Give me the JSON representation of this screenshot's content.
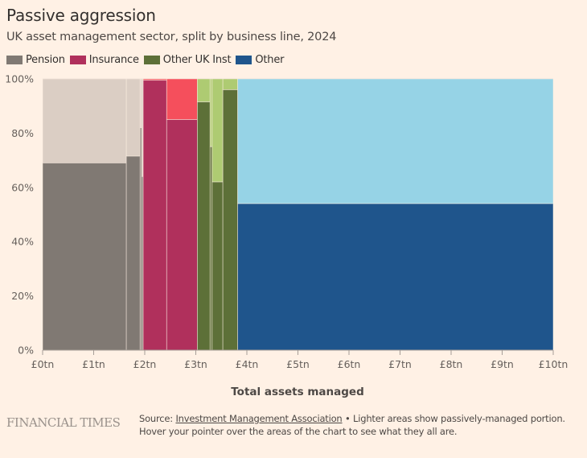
{
  "header": {
    "title": "Passive aggression",
    "subtitle": "UK asset management sector, split by business line, 2024"
  },
  "legend": [
    {
      "label": "Pension",
      "color": "#807973"
    },
    {
      "label": "Insurance",
      "color": "#B0305C"
    },
    {
      "label": "Other UK Inst",
      "color": "#5D7038"
    },
    {
      "label": "Other",
      "color": "#1F558C"
    }
  ],
  "colors": {
    "background": "#FFF1E5",
    "Pension": {
      "active": "#807973",
      "passive": "#DBCEC4"
    },
    "Insurance": {
      "active": "#B0305C",
      "passive": "#F54F5C"
    },
    "Other UK Inst": {
      "active": "#5D7038",
      "passive": "#AECB72"
    },
    "Other": {
      "active": "#1F558C",
      "passive": "#96D3E6"
    }
  },
  "chart_data": {
    "type": "mekko",
    "title": "Passive aggression",
    "subtitle": "UK asset management sector, split by business line, 2024",
    "xlabel": "Total assets managed",
    "ylabel": "",
    "xlim": [
      0,
      10
    ],
    "ylim": [
      0,
      100
    ],
    "x_ticks": [
      "£0tn",
      "£1tn",
      "£2tn",
      "£3tn",
      "£4tn",
      "£5tn",
      "£6tn",
      "£7tn",
      "£8tn",
      "£9tn",
      "£10tn"
    ],
    "y_ticks": [
      "0%",
      "20%",
      "40%",
      "60%",
      "80%",
      "100%"
    ],
    "grid": true,
    "legend_position": "top-left",
    "note": "Lighter areas show passively-managed portion",
    "segments": [
      {
        "group": "Pension",
        "width_tn": 1.64,
        "active_pct": 69
      },
      {
        "group": "Pension",
        "width_tn": 0.27,
        "active_pct": 71.5
      },
      {
        "group": "Pension",
        "width_tn": 0.03,
        "active_pct": 82
      },
      {
        "group": "Pension",
        "width_tn": 0.03,
        "active_pct": 64
      },
      {
        "group": "Insurance",
        "width_tn": 0.46,
        "active_pct": 99.5
      },
      {
        "group": "Insurance",
        "width_tn": 0.6,
        "active_pct": 85
      },
      {
        "group": "Other UK Inst",
        "width_tn": 0.25,
        "active_pct": 91.5
      },
      {
        "group": "Other UK Inst",
        "width_tn": 0.04,
        "active_pct": 75
      },
      {
        "group": "Other UK Inst",
        "width_tn": 0.21,
        "active_pct": 62
      },
      {
        "group": "Other UK Inst",
        "width_tn": 0.29,
        "active_pct": 96
      },
      {
        "group": "Other",
        "width_tn": 6.18,
        "active_pct": 54
      }
    ]
  },
  "footer": {
    "logo": "FINANCIAL TIMES",
    "source_prefix": "Source: ",
    "source_link": "Investment Management Association",
    "source_suffix": " • Lighter areas show passively-managed portion.",
    "note": "Hover your pointer over the areas of the chart to see what they all are."
  }
}
